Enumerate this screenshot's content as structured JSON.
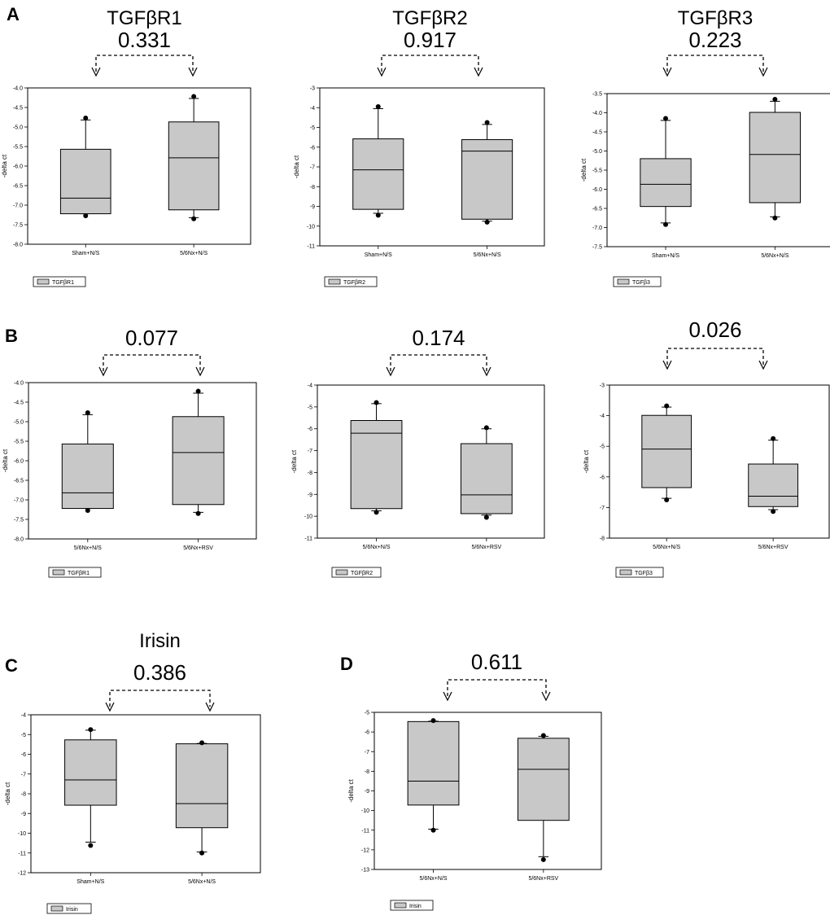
{
  "figure": {
    "panel_labels": [
      "A",
      "B",
      "C",
      "D"
    ]
  },
  "style": {
    "box_fill": "#c8c8c8",
    "line_color": "#000000"
  },
  "chart_data": [
    {
      "type": "box",
      "panel": "A",
      "title": "TGFβR1",
      "pvalue": "0.331",
      "ylabel": "-delta ct",
      "ylim": [
        -8.0,
        -4.0
      ],
      "yticks": [
        -8.0,
        -7.5,
        -7.0,
        -6.5,
        -6.0,
        -5.5,
        -5.0,
        -4.5,
        -4.0
      ],
      "ydec": 1,
      "categories": [
        "Sham+N/S",
        "5/6Nx+N/S"
      ],
      "boxes": [
        {
          "q1": -7.22,
          "median": -6.82,
          "q3": -5.57,
          "whisker_low": -7.22,
          "whisker_high": -4.82,
          "outliers": [
            -4.77,
            -7.27
          ]
        },
        {
          "q1": -7.12,
          "median": -5.79,
          "q3": -4.87,
          "whisker_low": -7.32,
          "whisker_high": -4.27,
          "outliers": [
            -4.22,
            -7.35
          ]
        }
      ],
      "legend": "TGFβR1"
    },
    {
      "type": "box",
      "panel": "A",
      "title": "TGFβR2",
      "pvalue": "0.917",
      "ylabel": "-delta ct",
      "ylim": [
        -11,
        -3
      ],
      "yticks": [
        -11,
        -10,
        -9,
        -8,
        -7,
        -6,
        -5,
        -4,
        -3
      ],
      "ydec": 0,
      "categories": [
        "Sham+N/S",
        "5/6Nx+N/S"
      ],
      "boxes": [
        {
          "q1": -9.15,
          "median": -7.15,
          "q3": -5.58,
          "whisker_low": -9.35,
          "whisker_high": -4.05,
          "outliers": [
            -3.95,
            -9.45
          ]
        },
        {
          "q1": -9.65,
          "median": -6.2,
          "q3": -5.62,
          "whisker_low": -9.75,
          "whisker_high": -4.85,
          "outliers": [
            -4.75,
            -9.8
          ]
        }
      ],
      "legend": "TGFβR2"
    },
    {
      "type": "box",
      "panel": "A",
      "title": "TGFβR3",
      "pvalue": "0.223",
      "ylabel": "-delta ct",
      "ylim": [
        -7.5,
        -3.5
      ],
      "yticks": [
        -7.5,
        -7.0,
        -6.5,
        -6.0,
        -5.5,
        -5.0,
        -4.5,
        -4.0,
        -3.5
      ],
      "ydec": 1,
      "categories": [
        "Sham+N/S",
        "5/6Nx+N/S"
      ],
      "boxes": [
        {
          "q1": -6.45,
          "median": -5.87,
          "q3": -5.2,
          "whisker_low": -6.88,
          "whisker_high": -4.2,
          "outliers": [
            -4.15,
            -6.92
          ]
        },
        {
          "q1": -6.35,
          "median": -5.09,
          "q3": -3.99,
          "whisker_low": -6.72,
          "whisker_high": -3.7,
          "outliers": [
            -3.65,
            -6.75
          ]
        }
      ],
      "legend": "TGFβ3"
    },
    {
      "type": "box",
      "panel": "B",
      "title": "",
      "pvalue": "0.077",
      "ylabel": "-delta ct",
      "ylim": [
        -8.0,
        -4.0
      ],
      "yticks": [
        -8.0,
        -7.5,
        -7.0,
        -6.5,
        -6.0,
        -5.5,
        -5.0,
        -4.5,
        -4.0
      ],
      "ydec": 1,
      "categories": [
        "5/6Nx+N/S",
        "5/6Nx+RSV"
      ],
      "boxes": [
        {
          "q1": -7.22,
          "median": -6.82,
          "q3": -5.57,
          "whisker_low": -7.22,
          "whisker_high": -4.82,
          "outliers": [
            -4.77,
            -7.27
          ]
        },
        {
          "q1": -7.12,
          "median": -5.79,
          "q3": -4.87,
          "whisker_low": -7.32,
          "whisker_high": -4.27,
          "outliers": [
            -4.22,
            -7.35
          ]
        }
      ],
      "legend": "TGFβR1"
    },
    {
      "type": "box",
      "panel": "B",
      "title": "",
      "pvalue": "0.174",
      "ylabel": "-delta ct",
      "ylim": [
        -11,
        -4
      ],
      "yticks": [
        -11,
        -10,
        -9,
        -8,
        -7,
        -6,
        -5,
        -4
      ],
      "ydec": 0,
      "categories": [
        "5/6Nx+N/S",
        "5/6Nx+RSV"
      ],
      "boxes": [
        {
          "q1": -9.65,
          "median": -6.2,
          "q3": -5.62,
          "whisker_low": -9.75,
          "whisker_high": -4.85,
          "outliers": [
            -4.8,
            -9.82
          ]
        },
        {
          "q1": -9.88,
          "median": -9.02,
          "q3": -6.68,
          "whisker_low": -9.95,
          "whisker_high": -6.0,
          "outliers": [
            -5.95,
            -10.05
          ]
        }
      ],
      "legend": "TGFβR2"
    },
    {
      "type": "box",
      "panel": "B",
      "title": "",
      "pvalue": "0.026",
      "ylabel": "-delta ct",
      "ylim": [
        -8,
        -3
      ],
      "yticks": [
        -8,
        -7,
        -6,
        -5,
        -4,
        -3
      ],
      "ydec": 0,
      "categories": [
        "5/6Nx+N/S",
        "5/6Nx+RSV"
      ],
      "boxes": [
        {
          "q1": -6.35,
          "median": -5.09,
          "q3": -3.99,
          "whisker_low": -6.7,
          "whisker_high": -3.72,
          "outliers": [
            -3.68,
            -6.75
          ]
        },
        {
          "q1": -6.97,
          "median": -6.63,
          "q3": -5.58,
          "whisker_low": -7.07,
          "whisker_high": -4.8,
          "outliers": [
            -4.75,
            -7.13
          ]
        }
      ],
      "legend": "TGFβ3"
    },
    {
      "type": "box",
      "panel": "C",
      "title": "Irisin",
      "pvalue": "0.386",
      "ylabel": "-delta ct",
      "ylim": [
        -12,
        -4
      ],
      "yticks": [
        -12,
        -11,
        -10,
        -9,
        -8,
        -7,
        -6,
        -5,
        -4
      ],
      "ydec": 0,
      "categories": [
        "Sham+N/S",
        "5/6Nx+N/S"
      ],
      "boxes": [
        {
          "q1": -8.58,
          "median": -7.3,
          "q3": -5.27,
          "whisker_low": -10.45,
          "whisker_high": -4.78,
          "outliers": [
            -4.75,
            -10.62
          ]
        },
        {
          "q1": -9.72,
          "median": -8.5,
          "q3": -5.47,
          "whisker_low": -10.95,
          "whisker_high": -5.45,
          "outliers": [
            -5.42,
            -11.0
          ]
        }
      ],
      "legend": "Irisin"
    },
    {
      "type": "box",
      "panel": "D",
      "title": "",
      "pvalue": "0.611",
      "ylabel": "-delta ct",
      "ylim": [
        -13,
        -5
      ],
      "yticks": [
        -13,
        -12,
        -11,
        -10,
        -9,
        -8,
        -7,
        -6,
        -5
      ],
      "ydec": 0,
      "categories": [
        "5/6Nx+N/S",
        "5/6Nx+RSV"
      ],
      "boxes": [
        {
          "q1": -9.72,
          "median": -8.5,
          "q3": -5.47,
          "whisker_low": -10.95,
          "whisker_high": -5.45,
          "outliers": [
            -5.42,
            -11.0
          ]
        },
        {
          "q1": -10.5,
          "median": -7.9,
          "q3": -6.32,
          "whisker_low": -12.35,
          "whisker_high": -6.22,
          "outliers": [
            -6.18,
            -12.5
          ]
        }
      ],
      "legend": "Irisin"
    }
  ]
}
